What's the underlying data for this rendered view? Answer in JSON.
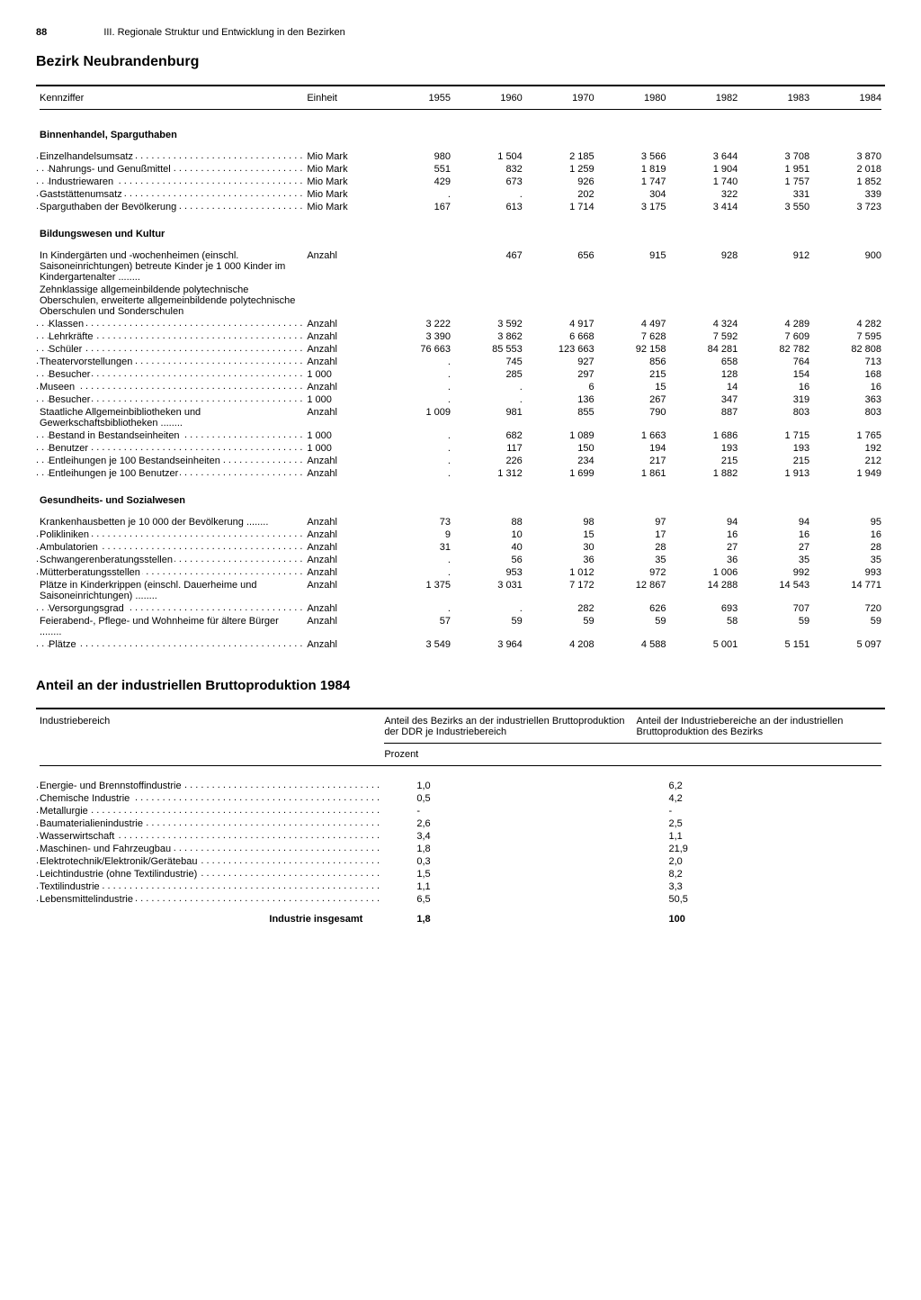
{
  "header": {
    "page_number": "88",
    "running_title": "III. Regionale Struktur und Entwicklung in den Bezirken"
  },
  "title1": "Bezirk Neubrandenburg",
  "table1": {
    "head": {
      "kennziffer": "Kennziffer",
      "einheit": "Einheit",
      "years": [
        "1955",
        "1960",
        "1970",
        "1980",
        "1982",
        "1983",
        "1984"
      ]
    },
    "sections": [
      {
        "label": "Binnenhandel, Sparguthaben",
        "rows": [
          {
            "label": "Einzelhandelsumsatz",
            "indent": 0,
            "unit": "Mio Mark",
            "vals": [
              "980",
              "1 504",
              "2 185",
              "3 566",
              "3 644",
              "3 708",
              "3 870"
            ]
          },
          {
            "label": "Nahrungs- und Genußmittel",
            "indent": 1,
            "unit": "Mio Mark",
            "vals": [
              "551",
              "832",
              "1 259",
              "1 819",
              "1 904",
              "1 951",
              "2 018"
            ]
          },
          {
            "label": "Industriewaren",
            "indent": 1,
            "unit": "Mio Mark",
            "vals": [
              "429",
              "673",
              "926",
              "1 747",
              "1 740",
              "1 757",
              "1 852"
            ]
          },
          {
            "label": "Gaststättenumsatz",
            "indent": 0,
            "unit": "Mio Mark",
            "vals": [
              ".",
              ".",
              "202",
              "304",
              "322",
              "331",
              "339"
            ]
          },
          {
            "label": "Sparguthaben der Bevölkerung",
            "indent": 0,
            "unit": "Mio Mark",
            "vals": [
              "167",
              "613",
              "1 714",
              "3 175",
              "3 414",
              "3 550",
              "3 723"
            ]
          }
        ]
      },
      {
        "label": "Bildungswesen und Kultur",
        "rows": [
          {
            "label": "In Kindergärten und -wochenheimen (einschl. Saisoneinrichtungen) betreute Kinder je 1 000 Kinder im Kindergarten­alter",
            "indent": 0,
            "unit": "Anzahl",
            "vals": [
              "",
              "467",
              "656",
              "915",
              "928",
              "912",
              "900"
            ],
            "noLeader": false,
            "wrap": true
          },
          {
            "label": "Zehnklassige allgemeinbildende poly­technische Oberschulen, erweiterte allgemeinbildende polytechnische Oberschulen und Sonderschulen",
            "indent": 0,
            "unit": "",
            "vals": [
              "",
              "",
              "",
              "",
              "",
              "",
              ""
            ],
            "noLeader": true,
            "wrap": true
          },
          {
            "label": "Klassen",
            "indent": 1,
            "unit": "Anzahl",
            "vals": [
              "3 222",
              "3 592",
              "4 917",
              "4 497",
              "4 324",
              "4 289",
              "4 282"
            ]
          },
          {
            "label": "Lehrkräfte",
            "indent": 1,
            "unit": "Anzahl",
            "vals": [
              "3 390",
              "3 862",
              "6 668",
              "7 628",
              "7 592",
              "7 609",
              "7 595"
            ]
          },
          {
            "label": "Schüler",
            "indent": 1,
            "unit": "Anzahl",
            "vals": [
              "76 663",
              "85 553",
              "123 663",
              "92 158",
              "84 281",
              "82 782",
              "82 808"
            ]
          },
          {
            "label": "Theatervorstellungen",
            "indent": 0,
            "unit": "Anzahl",
            "vals": [
              ".",
              "745",
              "927",
              "856",
              "658",
              "764",
              "713"
            ]
          },
          {
            "label": "Besucher",
            "indent": 1,
            "unit": "1 000",
            "vals": [
              ".",
              "285",
              "297",
              "215",
              "128",
              "154",
              "168"
            ]
          },
          {
            "label": "Museen",
            "indent": 0,
            "unit": "Anzahl",
            "vals": [
              ".",
              ".",
              "6",
              "15",
              "14",
              "16",
              "16"
            ]
          },
          {
            "label": "Besucher",
            "indent": 1,
            "unit": "1 000",
            "vals": [
              ".",
              ".",
              "136",
              "267",
              "347",
              "319",
              "363"
            ]
          },
          {
            "label": "Staatliche Allgemeinbibliotheken und Gewerkschaftsbibliotheken",
            "indent": 0,
            "unit": "Anzahl",
            "vals": [
              "1 009",
              "981",
              "855",
              "790",
              "887",
              "803",
              "803"
            ],
            "wrap": true
          },
          {
            "label": "Bestand in Bestandseinheiten",
            "indent": 1,
            "unit": "1 000",
            "vals": [
              ".",
              "682",
              "1 089",
              "1 663",
              "1 686",
              "1 715",
              "1 765"
            ]
          },
          {
            "label": "Benutzer",
            "indent": 1,
            "unit": "1 000",
            "vals": [
              ".",
              "117",
              "150",
              "194",
              "193",
              "193",
              "192"
            ]
          },
          {
            "label": "Entleihungen je 100 Bestandseinheiten",
            "indent": 1,
            "unit": "Anzahl",
            "vals": [
              ".",
              "226",
              "234",
              "217",
              "215",
              "215",
              "212"
            ]
          },
          {
            "label": "Entleihungen je 100 Benutzer",
            "indent": 1,
            "unit": "Anzahl",
            "vals": [
              ".",
              "1 312",
              "1 699",
              "1 861",
              "1 882",
              "1 913",
              "1 949"
            ]
          }
        ]
      },
      {
        "label": "Gesundheits- und Sozialwesen",
        "rows": [
          {
            "label": "Krankenhausbetten je 10 000 der Bevölkerung",
            "indent": 0,
            "unit": "Anzahl",
            "vals": [
              "73",
              "88",
              "98",
              "97",
              "94",
              "94",
              "95"
            ],
            "wrap": true
          },
          {
            "label": "Polikliniken",
            "indent": 0,
            "unit": "Anzahl",
            "vals": [
              "9",
              "10",
              "15",
              "17",
              "16",
              "16",
              "16"
            ]
          },
          {
            "label": "Ambulatorien",
            "indent": 0,
            "unit": "Anzahl",
            "vals": [
              "31",
              "40",
              "30",
              "28",
              "27",
              "27",
              "28"
            ]
          },
          {
            "label": "Schwangerenberatungsstellen",
            "indent": 0,
            "unit": "Anzahl",
            "vals": [
              ".",
              "56",
              "36",
              "35",
              "36",
              "35",
              "35"
            ]
          },
          {
            "label": "Mütterberatungsstellen",
            "indent": 0,
            "unit": "Anzahl",
            "vals": [
              ".",
              "953",
              "1 012",
              "972",
              "1 006",
              "992",
              "993"
            ]
          },
          {
            "label": "Plätze in Kinderkrippen (einschl. Dauer­heime und Saisoneinrichtungen)",
            "indent": 0,
            "unit": "Anzahl",
            "vals": [
              "1 375",
              "3 031",
              "7 172",
              "12 867",
              "14 288",
              "14 543",
              "14 771"
            ],
            "wrap": true
          },
          {
            "label": "Versorgungsgrad",
            "indent": 1,
            "unit": "Anzahl",
            "vals": [
              ".",
              ".",
              "282",
              "626",
              "693",
              "707",
              "720"
            ]
          },
          {
            "label": "Feierabend-, Pflege- und Wohnheime für ältere Bürger",
            "indent": 0,
            "unit": "Anzahl",
            "vals": [
              "57",
              "59",
              "59",
              "59",
              "58",
              "59",
              "59"
            ],
            "wrap": true
          },
          {
            "label": "Plätze",
            "indent": 1,
            "unit": "Anzahl",
            "vals": [
              "3 549",
              "3 964",
              "4 208",
              "4 588",
              "5 001",
              "5 151",
              "5 097"
            ]
          }
        ]
      }
    ]
  },
  "title2": "Anteil an der industriellen Bruttoproduktion 1984",
  "table2": {
    "head": {
      "col1": "Industriebereich",
      "col2": "Anteil des Bezirks an der industriellen Bruttoproduktion der DDR je Industriebereich",
      "col3": "Anteil der Industriebereiche an der industriellen Bruttoproduktion des Bezirks",
      "unit": "Prozent"
    },
    "rows": [
      {
        "label": "Energie- und Brennstoffindustrie",
        "v1": "1,0",
        "v2": "6,2"
      },
      {
        "label": "Chemische Industrie",
        "v1": "0,5",
        "v2": "4,2"
      },
      {
        "label": "Metallurgie",
        "v1": "-",
        "v2": "-"
      },
      {
        "label": "Baumaterialienindustrie",
        "v1": "2,6",
        "v2": "2,5"
      },
      {
        "label": "Wasserwirtschaft",
        "v1": "3,4",
        "v2": "1,1"
      },
      {
        "label": "Maschinen- und Fahrzeugbau",
        "v1": "1,8",
        "v2": "21,9"
      },
      {
        "label": "Elektrotechnik/Elektronik/Gerätebau",
        "v1": "0,3",
        "v2": "2,0"
      },
      {
        "label": "Leichtindustrie (ohne Textilindustrie)",
        "v1": "1,5",
        "v2": "8,2"
      },
      {
        "label": "Textilindustrie",
        "v1": "1,1",
        "v2": "3,3"
      },
      {
        "label": "Lebensmittelindustrie",
        "v1": "6,5",
        "v2": "50,5"
      }
    ],
    "total": {
      "label": "Industrie insgesamt",
      "v1": "1,8",
      "v2": "100"
    }
  }
}
